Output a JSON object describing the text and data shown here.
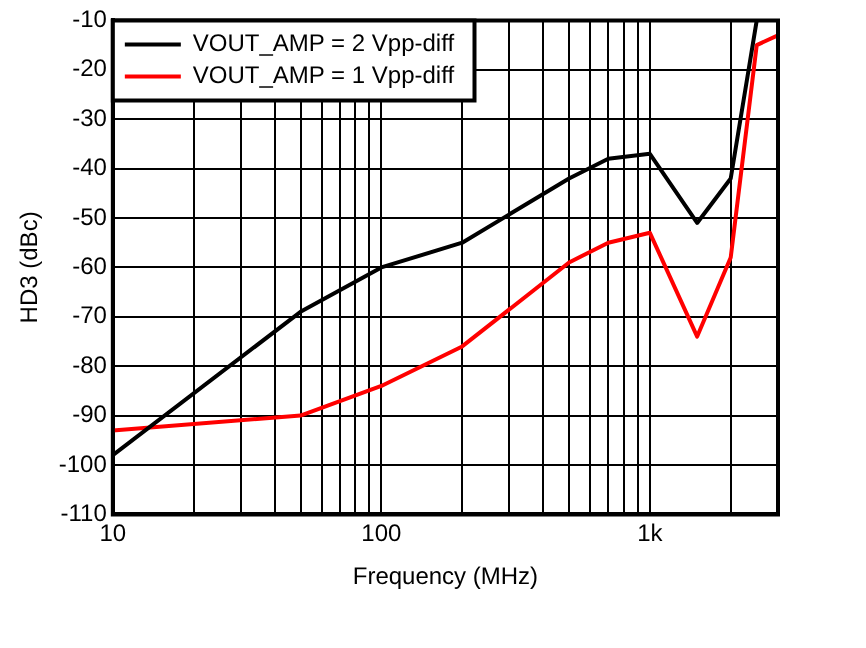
{
  "chart_data": {
    "type": "line",
    "xlabel": "Frequency (MHz)",
    "ylabel": "HD3 (dBc)",
    "log": "x",
    "xlim": [
      10,
      3000
    ],
    "xticks": [
      10,
      100,
      {
        "value": 1000,
        "label": "1k"
      }
    ],
    "ylim": [
      -110,
      -10
    ],
    "yticks": [
      -110,
      -100,
      -90,
      -80,
      -70,
      -60,
      -50,
      -40,
      -30,
      -20,
      -10
    ],
    "grid": true,
    "legend": "top left",
    "marker": "none",
    "line_style": "solid",
    "series": [
      {
        "name": "VOUT_AMP = 2 Vpp-diff",
        "color": "#000000",
        "x": [
          10,
          50,
          100,
          200,
          500,
          700,
          1000,
          1500,
          2000,
          2500
        ],
        "values": [
          -98,
          -69,
          -60,
          -55,
          -42,
          -38,
          -37,
          -51,
          -42,
          -10
        ]
      },
      {
        "name": "VOUT_AMP = 1 Vpp-diff",
        "color": "#ff0000",
        "x": [
          10,
          50,
          100,
          200,
          500,
          700,
          1000,
          1500,
          2000,
          2500,
          3000
        ],
        "values": [
          -93,
          -90,
          -84,
          -76,
          -59,
          -55,
          -53,
          -74,
          -58,
          -15,
          -13
        ]
      }
    ]
  }
}
